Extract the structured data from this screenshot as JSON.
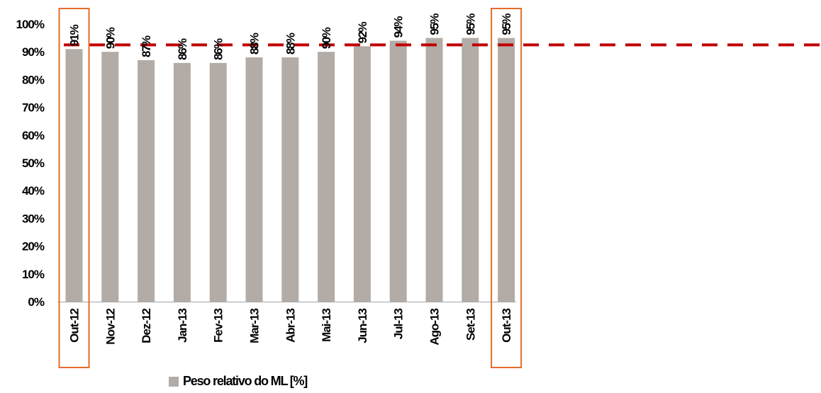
{
  "chart_data": {
    "type": "bar",
    "categories": [
      "Out-12",
      "Nov-12",
      "Dez-12",
      "Jan-13",
      "Fev-13",
      "Mar-13",
      "Abr-13",
      "Mai-13",
      "Jun-13",
      "Jul-13",
      "Ago-13",
      "Set-13",
      "Out-13"
    ],
    "series": [
      {
        "name": "Peso relativo do ML [%]",
        "values": [
          91,
          90,
          87,
          86,
          86,
          88,
          88,
          90,
          92,
          94,
          95,
          95,
          95
        ],
        "labels": [
          "91%",
          "90%",
          "87%",
          "86%",
          "86%",
          "88%",
          "88%",
          "90%",
          "92%",
          "94%",
          "95%",
          "95%",
          "95%"
        ],
        "color": "#b3aca6"
      }
    ],
    "reference_line": {
      "value": 92.5,
      "color": "#c00000",
      "style": "dashed"
    },
    "highlighted_categories": [
      "Out-12",
      "Out-13"
    ],
    "highlight_color": "#e46c2b",
    "yticks": [
      "0%",
      "10%",
      "20%",
      "30%",
      "40%",
      "50%",
      "60%",
      "70%",
      "80%",
      "90%",
      "100%"
    ],
    "ylim": [
      0,
      100
    ],
    "grid": false,
    "legend_position": "bottom"
  }
}
